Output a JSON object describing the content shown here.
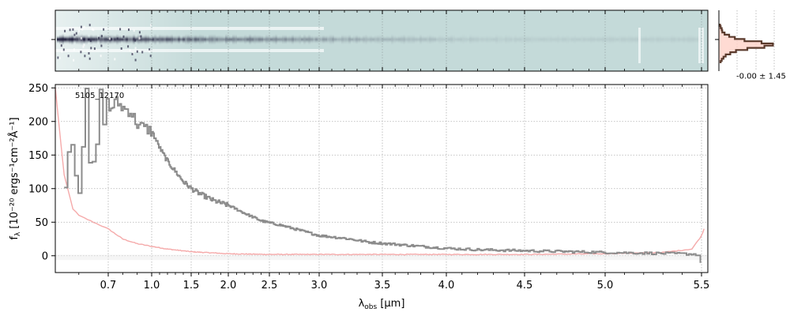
{
  "chart_data": [
    {
      "type": "heatmap",
      "description_role": "2D spectrum",
      "colors": {
        "background": "#c4dad9",
        "trace_dark": "#1e1e3a",
        "trace_mid": "#6e8594",
        "edge_light": "#f2f7f7"
      }
    },
    {
      "type": "line",
      "profile_label": "-0.00 ± 1.45",
      "colors": {
        "profile": "#5a3a2c",
        "fill": "#ffd2c8"
      }
    },
    {
      "type": "line",
      "annotation": "5105_12170",
      "xlabel_main": "λ",
      "xlabel_sub": "obs",
      "xlabel_unit": " [μm]",
      "ylabel": "f",
      "ylabel_sub": "λ",
      "ylabel_unit": " [10⁻²⁰ ergs⁻¹cm⁻²Å⁻¹]",
      "x_ticks": [
        "0.7",
        "1.0",
        "1.5",
        "2.0",
        "2.5",
        "3.0",
        "3.5",
        "4.0",
        "4.5",
        "5.0",
        "5.5"
      ],
      "y_ticks": [
        "0",
        "50",
        "100",
        "150",
        "200",
        "250"
      ],
      "ylim": [
        -25,
        255
      ],
      "grid": true,
      "series": [
        {
          "color": "#8c8c8c",
          "x": [
            0.55,
            0.57,
            0.6,
            0.62,
            0.64,
            0.67,
            0.7,
            0.75,
            0.8,
            0.85,
            0.9,
            1.0,
            1.1,
            1.2,
            1.3,
            1.4,
            1.5,
            1.6,
            1.8,
            2.0,
            2.2,
            2.4,
            2.6,
            2.8,
            3.0,
            3.2,
            3.4,
            3.6,
            3.8,
            4.0,
            4.2,
            4.4,
            4.6,
            4.8,
            5.0,
            5.2,
            5.4,
            5.48,
            5.5
          ],
          "y": [
            130,
            185,
            110,
            235,
            90,
            225,
            215,
            230,
            220,
            215,
            195,
            185,
            160,
            140,
            125,
            110,
            100,
            93,
            82,
            75,
            63,
            52,
            46,
            38,
            30,
            26,
            20,
            17,
            14,
            11,
            9,
            8,
            7,
            6,
            5,
            4,
            3,
            2,
            -15
          ]
        },
        {
          "color": "#f5aaaa",
          "x": [
            0.52,
            0.55,
            0.58,
            0.6,
            0.65,
            0.7,
            0.8,
            0.9,
            1.0,
            1.2,
            1.5,
            2.0,
            2.5,
            3.0,
            3.5,
            4.0,
            4.5,
            5.0,
            5.3,
            5.45,
            5.5,
            5.52
          ],
          "y": [
            250,
            120,
            70,
            60,
            50,
            40,
            25,
            18,
            14,
            10,
            6,
            3,
            2,
            2,
            2,
            2,
            2,
            3,
            5,
            10,
            30,
            40
          ]
        }
      ]
    }
  ]
}
